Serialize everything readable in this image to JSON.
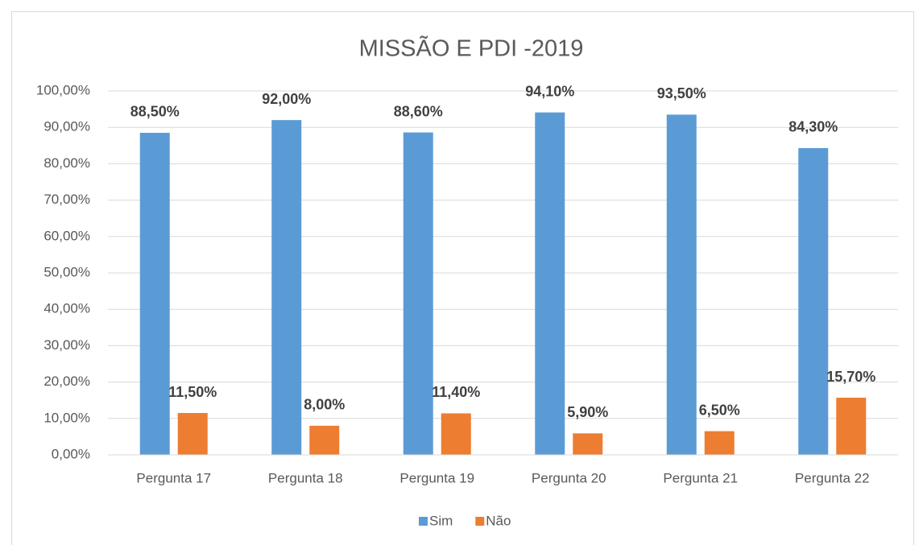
{
  "chart_data": {
    "type": "bar",
    "title": "MISSÃO E PDI -2019",
    "categories": [
      "Pergunta 17",
      "Pergunta 18",
      "Pergunta 19",
      "Pergunta 20",
      "Pergunta 21",
      "Pergunta 22"
    ],
    "series": [
      {
        "name": "Sim",
        "color": "#5b9bd5",
        "values": [
          88.5,
          92.0,
          88.6,
          94.1,
          93.5,
          84.3
        ],
        "value_labels": [
          "88,50%",
          "92,00%",
          "88,60%",
          "94,10%",
          "93,50%",
          "84,30%"
        ]
      },
      {
        "name": "Não",
        "color": "#ed7d31",
        "values": [
          11.5,
          8.0,
          11.4,
          5.9,
          6.5,
          15.7
        ],
        "value_labels": [
          "11,50%",
          "8,00%",
          "11,40%",
          "5,90%",
          "6,50%",
          "15,70%"
        ]
      }
    ],
    "ylim": [
      0,
      100
    ],
    "yticks": [
      {
        "value": 0,
        "label": "0,00%"
      },
      {
        "value": 10,
        "label": "10,00%"
      },
      {
        "value": 20,
        "label": "20,00%"
      },
      {
        "value": 30,
        "label": "30,00%"
      },
      {
        "value": 40,
        "label": "40,00%"
      },
      {
        "value": 50,
        "label": "50,00%"
      },
      {
        "value": 60,
        "label": "60,00%"
      },
      {
        "value": 70,
        "label": "70,00%"
      },
      {
        "value": 80,
        "label": "80,00%"
      },
      {
        "value": 90,
        "label": "90,00%"
      },
      {
        "value": 100,
        "label": "100,00%"
      }
    ],
    "grid": true,
    "legend": "bottom"
  }
}
